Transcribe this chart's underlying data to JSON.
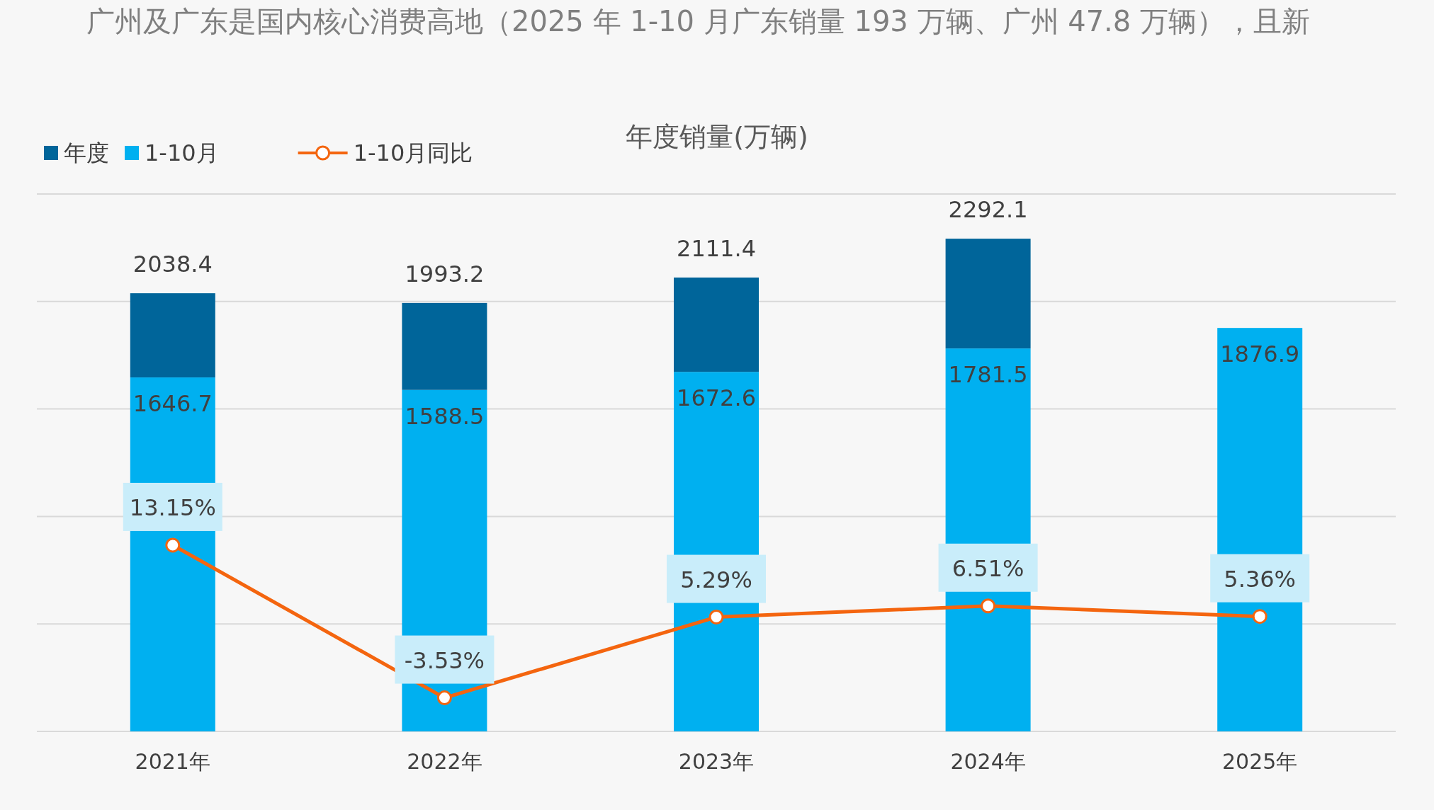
{
  "chart_data": {
    "type": "bar",
    "title": "年度销量(万辆)",
    "subtitle": "广州及广东是国内核心消费高地（2025 年 1-10 月广东销量 193 万辆、广州 47.8 万辆），且新",
    "categories": [
      "2021年",
      "2022年",
      "2023年",
      "2024年",
      "2025年"
    ],
    "stacked": true,
    "series": [
      {
        "name": "1-10月",
        "color": "#00b0f0",
        "values": [
          1646.7,
          1588.5,
          1672.6,
          1781.5,
          1876.9
        ],
        "value_labels": [
          "1646.7",
          "1588.5",
          "1672.6",
          "1781.5",
          "1876.9"
        ]
      },
      {
        "name": "年度",
        "color": "#00659a",
        "values": [
          391.7,
          404.7,
          438.8,
          510.6,
          null
        ]
      },
      {
        "name": "1-10月同比",
        "type": "line",
        "axis": "y2",
        "color": "#f4650f",
        "marker": "circle",
        "values": [
          13.15,
          -3.53,
          5.29,
          6.51,
          5.36
        ],
        "value_labels": [
          "13.15%",
          "-3.53%",
          "5.29%",
          "6.51%",
          "5.36%"
        ]
      }
    ],
    "totals": [
      "2038.4",
      "1993.2",
      "2111.4",
      "2292.1",
      null
    ],
    "ylim": [
      0,
      2500
    ],
    "yticks": [
      {
        "value": 0,
        "label": null
      },
      {
        "value": 500,
        "label": null
      },
      {
        "value": 1000,
        "label": null
      },
      {
        "value": 1500,
        "label": null
      },
      {
        "value": 2000,
        "label": null
      },
      {
        "value": 2500,
        "label": null
      }
    ],
    "grid": "y",
    "legend": "top left",
    "tick_labels": "x"
  }
}
